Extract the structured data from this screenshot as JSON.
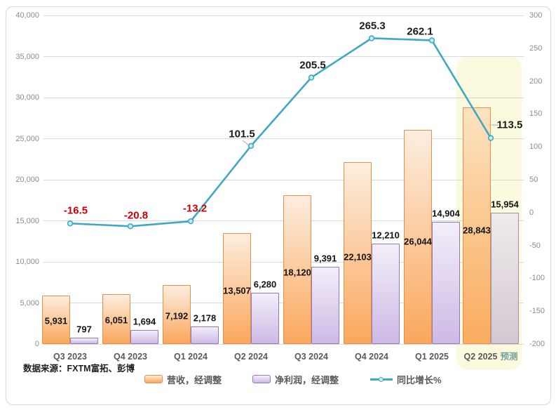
{
  "source_note": "数据来源：FXTM富拓、彭博",
  "chart_data": {
    "type": "combo-bar-line",
    "title": "",
    "categories": [
      "Q3 2023",
      "Q4 2023",
      "Q1 2024",
      "Q2 2024",
      "Q3 2024",
      "Q4 2024",
      "Q1 2025",
      "Q2 2025"
    ],
    "forecast_index": 7,
    "forecast_suffix": "预测",
    "series": [
      {
        "name": "营收，经调整",
        "type": "bar",
        "axis": "left",
        "values": [
          5931,
          6051,
          7192,
          13507,
          18120,
          22103,
          26044,
          28843
        ],
        "labels": [
          "5,931",
          "6,051",
          "7,192",
          "13,507",
          "18,120",
          "22,103",
          "26,044",
          "28,843"
        ]
      },
      {
        "name": "净利润，经调整",
        "type": "bar",
        "axis": "left",
        "values": [
          797,
          1694,
          2178,
          6280,
          9391,
          12210,
          14904,
          15954
        ],
        "labels": [
          "797",
          "1,694",
          "2,178",
          "6,280",
          "9,391",
          "12,210",
          "14,904",
          "15,954"
        ]
      },
      {
        "name": "同比增长%",
        "type": "line",
        "axis": "right",
        "values": [
          -16.5,
          -20.8,
          -13.2,
          101.5,
          205.5,
          265.3,
          262.1,
          113.5
        ],
        "labels": [
          "-16.5",
          "-20.8",
          "-13.2",
          "101.5",
          "205.5",
          "265.3",
          "262.1",
          "113.5"
        ]
      }
    ],
    "left_axis": {
      "min": 0,
      "max": 40000,
      "step": 5000,
      "ticks": [
        "40,000",
        "35,000",
        "30,000",
        "25,000",
        "20,000",
        "15,000",
        "10,000",
        "5,000",
        "0"
      ]
    },
    "right_axis": {
      "min": -200,
      "max": 300,
      "step": 50,
      "ticks": [
        "300",
        "250",
        "200",
        "150",
        "100",
        "50",
        "0",
        "-50",
        "-100",
        "-150",
        "-200"
      ]
    },
    "legend": [
      {
        "key": "revenue",
        "label": "营收，经调整"
      },
      {
        "key": "netprofit",
        "label": "净利润，经调整"
      },
      {
        "key": "growth",
        "label": "同比增长%"
      }
    ],
    "grid": true,
    "legend_position": "bottom",
    "colors": {
      "revenue_border": "#e78f4d",
      "revenue_top": "#fdeedf",
      "revenue_bottom": "#faa75c",
      "revenue_forecast_top": "#fce3c0",
      "revenue_forecast_bottom": "#faab5e",
      "netprofit_border": "#9579b6",
      "netprofit_top": "#f3eff9",
      "netprofit_bottom": "#cdb9e5",
      "netprofit_forecast_border": "#9c93a4",
      "netprofit_forecast_top": "#efebec",
      "netprofit_forecast_bottom": "#d2c8d2",
      "growth_line": "#3fa9c4",
      "growth_marker_fill": "#c9eaf4",
      "negative_label": "#cc0000",
      "forecast_band": "#fcfade",
      "gridline": "#d9d9d9"
    }
  }
}
